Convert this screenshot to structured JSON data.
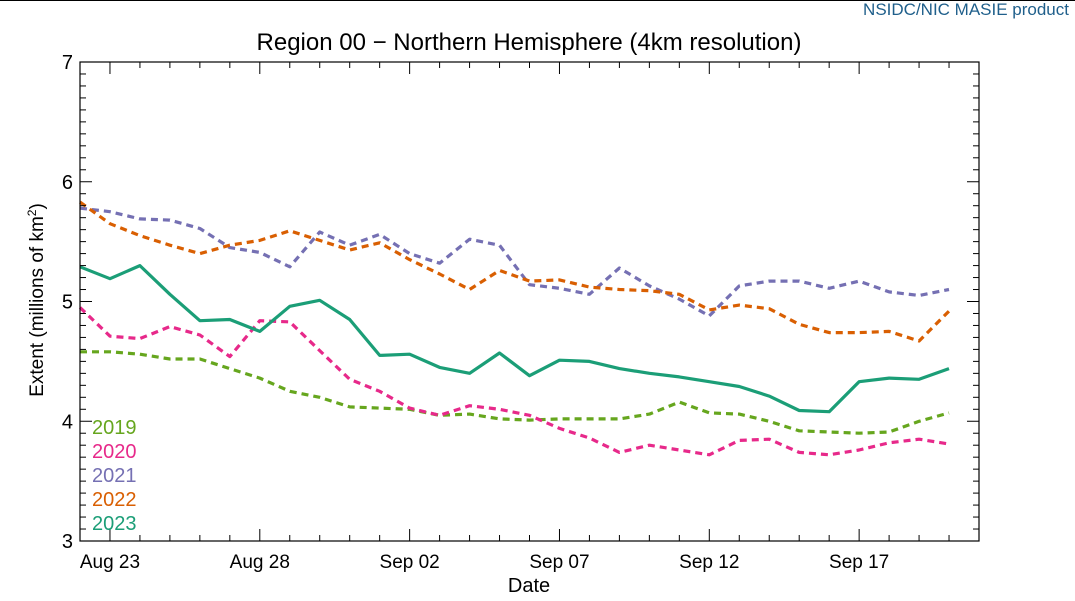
{
  "header": {
    "product_label": "NSIDC/NIC MASIE product"
  },
  "chart_data": {
    "type": "line",
    "title": "Region 00 − Northern Hemisphere (4km resolution)",
    "xlabel": "Date",
    "ylabel_prefix": "Extent (millions of km",
    "ylabel_sup": "2",
    "ylabel_suffix": ")",
    "ylim": [
      3,
      7
    ],
    "yticks": [
      3,
      4,
      5,
      6,
      7
    ],
    "xlim": [
      "2023-08-22",
      "2023-09-21"
    ],
    "xtick_labels": [
      "Aug 23",
      "Aug 28",
      "Sep 02",
      "Sep 07",
      "Sep 12",
      "Sep 17"
    ],
    "xtick_dates": [
      "2023-08-23",
      "2023-08-28",
      "2023-09-02",
      "2023-09-07",
      "2023-09-12",
      "2023-09-17"
    ],
    "x": [
      "2023-08-22",
      "2023-08-23",
      "2023-08-24",
      "2023-08-25",
      "2023-08-26",
      "2023-08-27",
      "2023-08-28",
      "2023-08-29",
      "2023-08-30",
      "2023-08-31",
      "2023-09-01",
      "2023-09-02",
      "2023-09-03",
      "2023-09-04",
      "2023-09-05",
      "2023-09-06",
      "2023-09-07",
      "2023-09-08",
      "2023-09-09",
      "2023-09-10",
      "2023-09-11",
      "2023-09-12",
      "2023-09-13",
      "2023-09-14",
      "2023-09-15",
      "2023-09-16",
      "2023-09-17",
      "2023-09-18",
      "2023-09-19",
      "2023-09-20"
    ],
    "legend_position": "bottom-left",
    "series": [
      {
        "name": "2019",
        "color": "#66a61e",
        "dash": true,
        "values": [
          4.58,
          4.58,
          4.56,
          4.52,
          4.52,
          4.44,
          4.36,
          4.25,
          4.2,
          4.12,
          4.11,
          4.1,
          4.05,
          4.06,
          4.02,
          4.01,
          4.02,
          4.02,
          4.02,
          4.06,
          4.16,
          4.07,
          4.06,
          4.0,
          3.92,
          3.91,
          3.9,
          3.91,
          4.0,
          4.07
        ]
      },
      {
        "name": "2020",
        "color": "#e7298a",
        "dash": true,
        "values": [
          4.95,
          4.71,
          4.69,
          4.79,
          4.72,
          4.54,
          4.84,
          4.83,
          4.59,
          4.35,
          4.25,
          4.11,
          4.05,
          4.13,
          4.1,
          4.05,
          3.94,
          3.86,
          3.74,
          3.8,
          3.76,
          3.72,
          3.84,
          3.85,
          3.74,
          3.72,
          3.76,
          3.82,
          3.85,
          3.81
        ]
      },
      {
        "name": "2021",
        "color": "#7570b3",
        "dash": true,
        "values": [
          5.78,
          5.75,
          5.69,
          5.68,
          5.61,
          5.45,
          5.41,
          5.29,
          5.58,
          5.47,
          5.56,
          5.4,
          5.32,
          5.52,
          5.47,
          5.14,
          5.11,
          5.06,
          5.28,
          5.13,
          5.02,
          4.88,
          5.13,
          5.17,
          5.17,
          5.11,
          5.17,
          5.08,
          5.05,
          5.1
        ]
      },
      {
        "name": "2022",
        "color": "#d95f02",
        "dash": true,
        "values": [
          5.83,
          5.65,
          5.55,
          5.47,
          5.4,
          5.47,
          5.51,
          5.59,
          5.51,
          5.43,
          5.49,
          5.35,
          5.23,
          5.1,
          5.26,
          5.17,
          5.18,
          5.12,
          5.1,
          5.09,
          5.06,
          4.93,
          4.97,
          4.94,
          4.81,
          4.74,
          4.74,
          4.75,
          4.67,
          4.92
        ]
      },
      {
        "name": "2023",
        "color": "#1b9e77",
        "dash": false,
        "values": [
          5.29,
          5.19,
          5.3,
          5.06,
          4.84,
          4.85,
          4.75,
          4.96,
          5.01,
          4.85,
          4.55,
          4.56,
          4.45,
          4.4,
          4.57,
          4.38,
          4.51,
          4.5,
          4.44,
          4.4,
          4.37,
          4.33,
          4.29,
          4.21,
          4.09,
          4.08,
          4.33,
          4.36,
          4.35,
          4.44
        ]
      }
    ]
  }
}
